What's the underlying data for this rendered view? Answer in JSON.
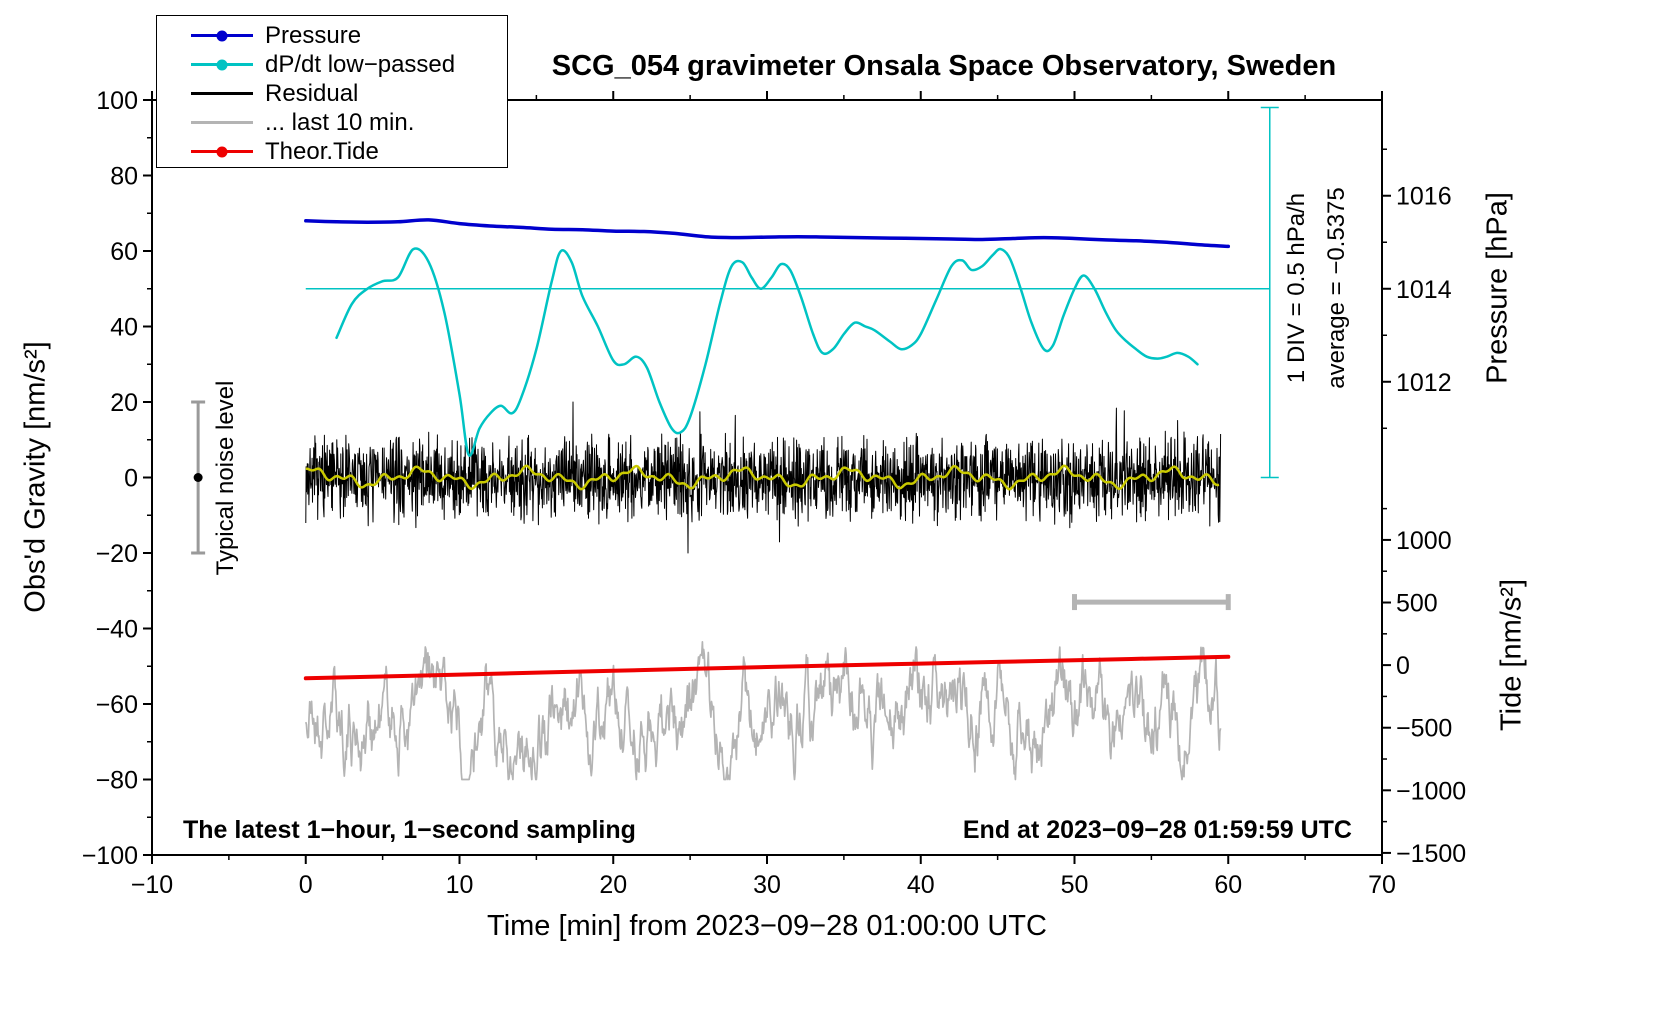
{
  "chart_data": {
    "type": "line",
    "title": "SCG_054 gravimeter Onsala Space Observatory, Sweden",
    "xlabel": "Time [min] from 2023−09−28 01:00:00 UTC",
    "ylabel_left": "Obs'd Gravity [nm/s²]",
    "ylabel_pressure": "Pressure [hPa]",
    "ylabel_tide": "Tide [nm/s²]",
    "footer_left": "The latest 1−hour, 1−second sampling",
    "footer_right": "End at 2023−09−28 01:59:59 UTC",
    "div_note": "1 DIV = 0.5 hPa/h",
    "average_note": "average = −0.5375",
    "noise_label": "Typical noise level",
    "x_range": [
      -10,
      70
    ],
    "x_major_ticks": [
      -10,
      0,
      10,
      20,
      30,
      40,
      50,
      60,
      70
    ],
    "x_minor_step": 5,
    "y_left_range": [
      -100,
      100
    ],
    "y_left_major_ticks": [
      -100,
      -80,
      -60,
      -40,
      -20,
      0,
      20,
      40,
      60,
      80,
      100
    ],
    "y_left_minor_step": 10,
    "pressure_axis": {
      "anchor_value": 1014,
      "anchor_gravity": 50,
      "units_per_hpa": 12.32,
      "labeled_ticks": [
        1016,
        1014,
        1012
      ],
      "minor_ticks": [
        1017,
        1015,
        1013,
        1011
      ]
    },
    "tide_axis": {
      "anchor_value": 0,
      "anchor_gravity": -49.7,
      "units_per_tide": 0.033164,
      "labeled_ticks": [
        1000,
        500,
        0,
        -500,
        -1000,
        -1500
      ],
      "minor_ticks": [
        1250,
        750,
        250,
        -250,
        -750,
        -1250
      ]
    },
    "legend": [
      {
        "label": "Pressure",
        "color": "#0000cd",
        "marker": "dot"
      },
      {
        "label": "dP/dt low−passed",
        "color": "#00c3c3",
        "marker": "dot"
      },
      {
        "label": "Residual",
        "color": "#000000",
        "marker": "line"
      },
      {
        "label": "... last 10 min.",
        "color": "#b4b4b4",
        "marker": "line"
      },
      {
        "label": "Theor.Tide",
        "color": "#ee0000",
        "marker": "dot"
      }
    ],
    "series": {
      "pressure_hpa": {
        "color": "#0000cd",
        "width": 3.5,
        "x": [
          0,
          2,
          4,
          6,
          8,
          10,
          12,
          14,
          16,
          18,
          20,
          22,
          24,
          26,
          28,
          30,
          32,
          34,
          36,
          38,
          40,
          42,
          44,
          46,
          48,
          50,
          52,
          54,
          56,
          58,
          60
        ],
        "values": [
          1015.46,
          1015.44,
          1015.43,
          1015.44,
          1015.48,
          1015.4,
          1015.35,
          1015.32,
          1015.28,
          1015.27,
          1015.24,
          1015.23,
          1015.19,
          1015.12,
          1015.1,
          1015.11,
          1015.12,
          1015.11,
          1015.1,
          1015.09,
          1015.08,
          1015.07,
          1015.06,
          1015.08,
          1015.1,
          1015.08,
          1015.05,
          1015.03,
          1015.0,
          1014.95,
          1014.91
        ]
      },
      "dpdt": {
        "color": "#00c3c3",
        "width": 2.5,
        "x": [
          2,
          3,
          4,
          5,
          6,
          7,
          8,
          9,
          10,
          10.6,
          11.3,
          12,
          12.7,
          13.4,
          14,
          15,
          16,
          16.6,
          17.3,
          18,
          19,
          20,
          20.7,
          21.5,
          22.2,
          23,
          23.8,
          24.4,
          25,
          26,
          27,
          27.7,
          28.4,
          29,
          29.6,
          30.3,
          30.9,
          31.5,
          32.2,
          33,
          33.6,
          34.3,
          35,
          35.7,
          36.4,
          37,
          38,
          38.7,
          39.4,
          40,
          41,
          42,
          42.7,
          43.3,
          44,
          44.7,
          45.2,
          45.8,
          46.5,
          47.2,
          48,
          48.6,
          49.3,
          50,
          50.6,
          51.3,
          52,
          52.7,
          53.4,
          54,
          54.7,
          55.4,
          56,
          56.7,
          57.4,
          58
        ],
        "values": [
          37,
          46,
          50,
          52,
          53,
          60.5,
          57,
          44,
          22,
          6,
          13,
          17,
          19,
          17,
          21,
          34,
          52,
          60,
          57,
          48,
          40,
          31,
          30,
          32,
          29,
          20,
          13,
          12,
          16,
          30,
          47,
          56,
          57,
          53,
          50,
          53,
          56.5,
          55,
          48,
          38,
          33,
          34,
          38,
          41,
          40,
          39,
          36,
          34,
          35,
          38,
          47,
          56,
          57.5,
          55,
          56,
          59,
          60.5,
          58,
          50,
          41,
          34,
          35,
          43,
          50,
          53.5,
          50,
          44,
          39,
          36,
          34,
          32,
          31.5,
          32,
          33,
          32,
          30
        ]
      },
      "dpdt_reference_line": {
        "gravity": 50,
        "x_start": 0,
        "x_end": 62.7,
        "color": "#00c3c3"
      },
      "dpdt_scale_bar": {
        "x": 62.7,
        "gravity_from": 0,
        "gravity_to": 98,
        "color": "#00c3c3"
      },
      "residual_noise": {
        "x_start": 0,
        "x_end": 59.5,
        "mean": 0,
        "typical_amplitude": 13,
        "max_amplitude": 20,
        "color": "#000000",
        "seed": 7
      },
      "residual_smooth": {
        "mean": 0,
        "amplitude": 2.5,
        "color": "#c9c900"
      },
      "last10min_noise": {
        "x_start": 0,
        "x_end": 59.5,
        "mean": -64,
        "typical_amplitude": 9,
        "clamp": [
          -80,
          -42
        ],
        "color": "#b4b4b4",
        "seed": 21
      },
      "tide": {
        "color": "#ee0000",
        "width": 4,
        "x": [
          0,
          10,
          20,
          30,
          40,
          50,
          60
        ],
        "values": [
          -53.2,
          -52.2,
          -51.2,
          -50.2,
          -49.3,
          -48.4,
          -47.5
        ]
      },
      "scale_bar_10min": {
        "x_from": 50,
        "x_to": 60,
        "gravity": -33,
        "color": "#b4b4b4"
      },
      "noise_level_bar": {
        "x": -7,
        "gravity_from": -20,
        "gravity_to": 20,
        "dot_gravity": 0,
        "color": "#9a9a9a"
      }
    }
  }
}
